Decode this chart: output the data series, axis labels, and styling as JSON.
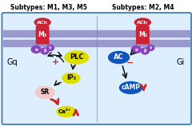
{
  "title_left": "Subtypes: M1, M3, M5",
  "title_right": "Subtypes: M2, M4",
  "bg_outer": "#ffffff",
  "bg_inner": "#ddeeff",
  "border_color": "#5588bb",
  "membrane_color": "#9999cc",
  "receptor_color": "#cc2233",
  "ach_color": "#cc2233",
  "ach_label": "ACh",
  "receptor_left_label": "M₃",
  "receptor_right_label": "M₂",
  "alpha_color": "#8844bb",
  "beta_color": "#8844bb",
  "gamma_color": "#8844bb",
  "gq_label": "Gq",
  "gi_label": "Gi",
  "plc_color": "#dddd00",
  "plc_label": "PLC",
  "ip3_color": "#dddd00",
  "ip3_label": "IP₃",
  "sr_color": "#f5c8c8",
  "sr_label": "SR",
  "ca_color": "#dddd00",
  "ca_label": "Ca²⁺",
  "ac_color": "#1155bb",
  "ac_label": "AC",
  "camp_color": "#1155bb",
  "camp_label": "cAMP",
  "plus_color": "#cc2222",
  "minus_color": "#cc2222",
  "arrow_color": "#111111",
  "red_arrow_color": "#cc2222",
  "title_color": "#000000",
  "divider_color": "#5588bb"
}
